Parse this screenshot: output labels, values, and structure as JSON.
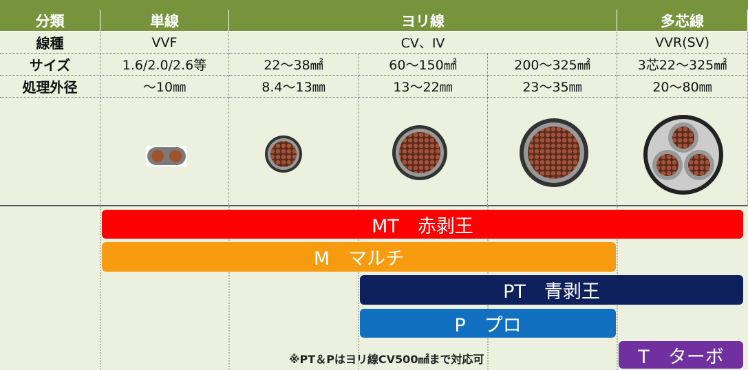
{
  "header": [
    "分類",
    "単線",
    "ヨリ線",
    "多芯線"
  ],
  "rows": [
    [
      "線種",
      "VVF",
      "CV、IV",
      "VVR(SV)"
    ],
    [
      "サイズ",
      "1.6/2.0/2.6等",
      "22～38㎟",
      "60～150㎟",
      "200～325㎟",
      "3芯22～325㎟"
    ],
    [
      "処理外径",
      "～10㎜",
      "8.4～13㎜",
      "13～22㎜",
      "23～35㎜",
      "20～80㎜"
    ]
  ],
  "bars": [
    "MT　赤剥王",
    "M　マルチ",
    "PT　青剥王",
    "P　プロ",
    "T　ターボ"
  ],
  "note": "※PT＆Pはヨリ線CV500㎟まで対応可"
}
